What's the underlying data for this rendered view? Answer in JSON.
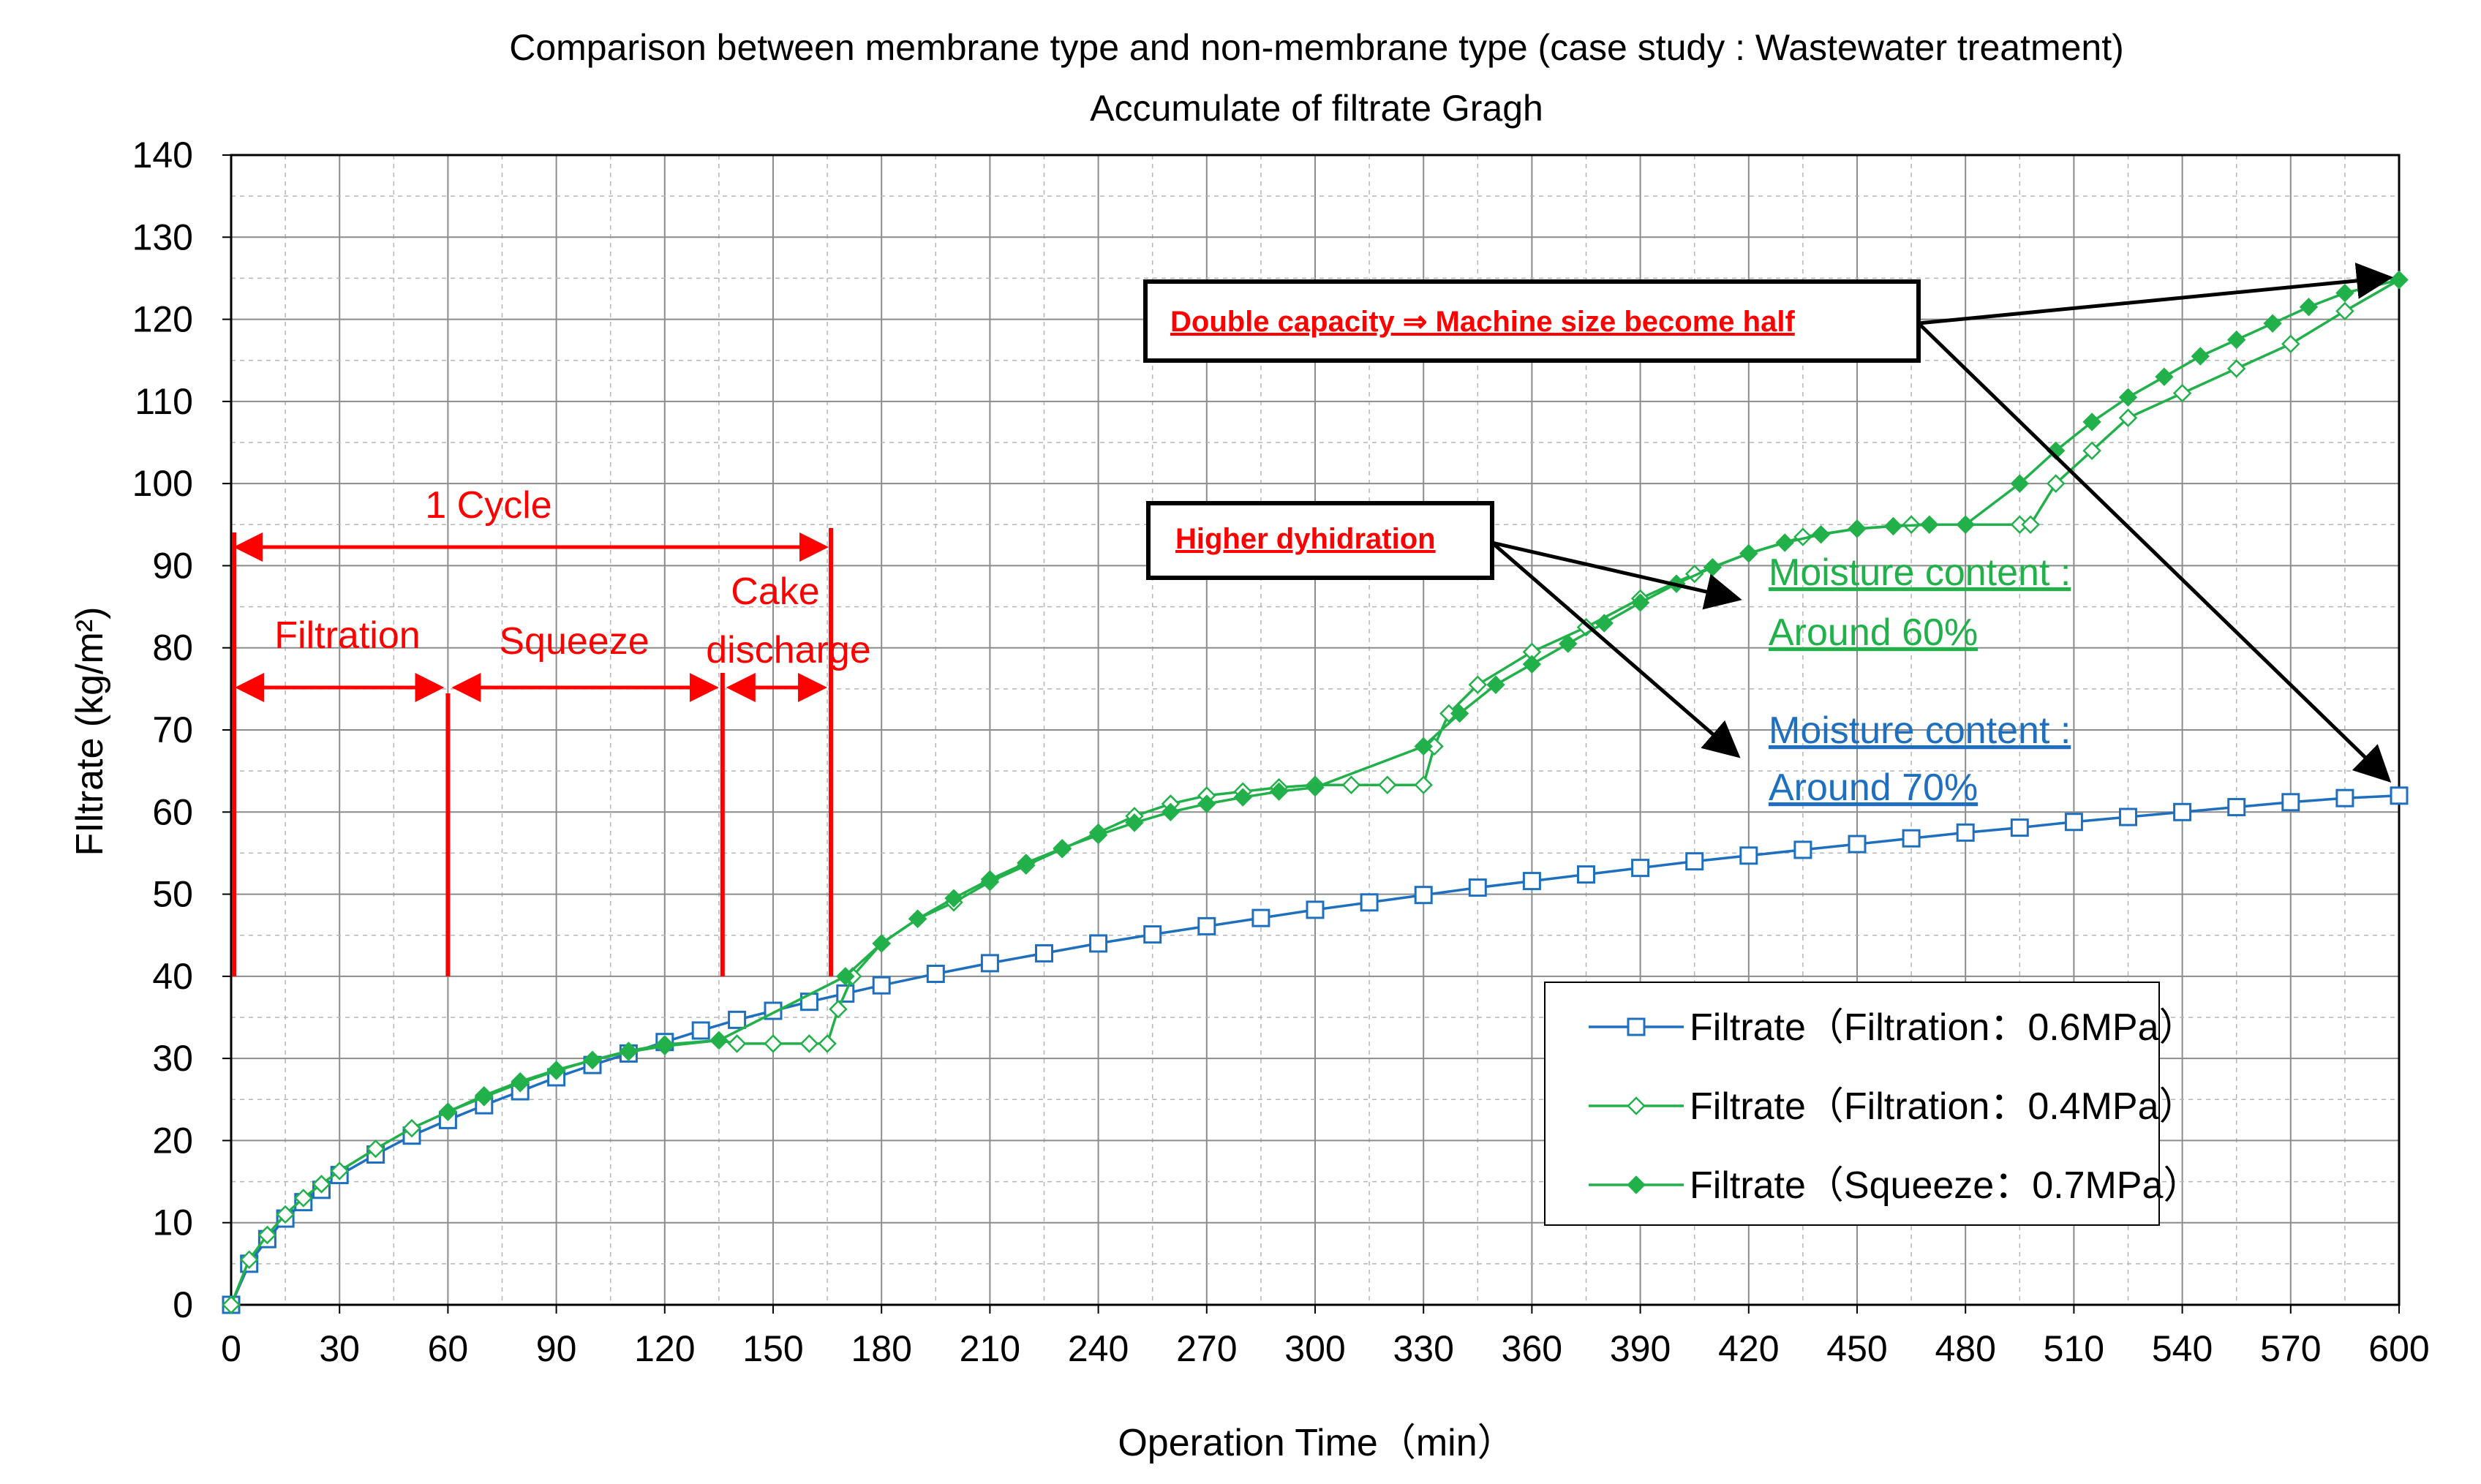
{
  "chart_data": {
    "type": "line",
    "title": "Comparison between membrane type and non-membrane type (case study : Wastewater treatment)",
    "subtitle": "Accumulate of filtrate Gragh",
    "xlabel": "Operation Time（min）",
    "ylabel": "FIltrate (kg/m²)",
    "xlim": [
      0,
      600
    ],
    "ylim": [
      0,
      140
    ],
    "x_ticks": [
      "0",
      "30",
      "60",
      "90",
      "120",
      "150",
      "180",
      "210",
      "240",
      "270",
      "300",
      "330",
      "360",
      "390",
      "420",
      "450",
      "480",
      "510",
      "540",
      "570",
      "600"
    ],
    "y_ticks": [
      "0",
      "10",
      "20",
      "30",
      "40",
      "50",
      "60",
      "70",
      "80",
      "90",
      "100",
      "110",
      "120",
      "130",
      "140"
    ],
    "grid": "on (major solid, minor dashed)",
    "legend_position": "bottom-right",
    "series": [
      {
        "name": "Filtrate（Filtration：0.6MPa）",
        "color": "#1f6fbf",
        "marker": "open-square",
        "x": [
          0,
          5,
          10,
          15,
          20,
          25,
          30,
          40,
          50,
          60,
          70,
          80,
          90,
          100,
          110,
          120,
          130,
          140,
          150,
          160,
          170,
          180,
          195,
          210,
          225,
          240,
          255,
          270,
          285,
          300,
          315,
          330,
          345,
          360,
          375,
          390,
          405,
          420,
          435,
          450,
          465,
          480,
          495,
          510,
          525,
          540,
          555,
          570,
          585,
          600
        ],
        "y": [
          0,
          5,
          8,
          10.5,
          12.5,
          14,
          15.8,
          18.3,
          20.6,
          22.5,
          24.3,
          26,
          27.7,
          29.2,
          30.6,
          32,
          33.4,
          34.7,
          35.8,
          36.9,
          37.9,
          38.9,
          40.3,
          41.6,
          42.8,
          44,
          45.1,
          46.1,
          47.1,
          48.1,
          49,
          49.9,
          50.8,
          51.6,
          52.4,
          53.2,
          54,
          54.7,
          55.4,
          56.1,
          56.8,
          57.5,
          58.1,
          58.8,
          59.4,
          60,
          60.6,
          61.2,
          61.7,
          62
        ]
      },
      {
        "name": "Filtrate（Filtration：0.4MPa）",
        "color": "#22b04b",
        "marker": "open-diamond",
        "x": [
          0,
          5,
          10,
          15,
          20,
          25,
          30,
          40,
          50,
          60,
          70,
          80,
          90,
          100,
          110,
          120,
          135,
          140,
          150,
          160,
          165,
          168,
          172,
          180,
          190,
          200,
          210,
          220,
          230,
          240,
          250,
          260,
          270,
          280,
          290,
          300,
          310,
          320,
          330,
          333,
          337,
          345,
          360,
          375,
          390,
          405,
          420,
          435,
          450,
          465,
          480,
          495,
          498,
          505,
          515,
          525,
          540,
          555,
          570,
          585,
          600
        ],
        "y": [
          0,
          5.5,
          8.5,
          11,
          13,
          14.7,
          16.3,
          19,
          21.5,
          23.5,
          25.3,
          27,
          28.5,
          29.8,
          30.9,
          31.7,
          32.2,
          31.8,
          31.8,
          31.8,
          31.8,
          36,
          40,
          44,
          47,
          49,
          51.5,
          53.5,
          55.5,
          57.5,
          59.5,
          61,
          62,
          62.5,
          63,
          63.3,
          63.3,
          63.3,
          63.3,
          68,
          72,
          75.5,
          79.5,
          82.5,
          86,
          89,
          91.5,
          93.5,
          94.5,
          95,
          95,
          95,
          95,
          100,
          104,
          108,
          111,
          114,
          117,
          121,
          124.8
        ]
      },
      {
        "name": "Filtrate（Squeeze：0.7MPa）",
        "color": "#22b04b",
        "marker": "filled-diamond",
        "x": [
          60,
          70,
          80,
          90,
          100,
          110,
          120,
          135,
          170,
          180,
          190,
          200,
          210,
          220,
          230,
          240,
          250,
          260,
          270,
          280,
          290,
          300,
          330,
          340,
          350,
          360,
          370,
          380,
          390,
          400,
          410,
          420,
          430,
          440,
          450,
          460,
          470,
          480,
          495,
          505,
          515,
          525,
          535,
          545,
          555,
          565,
          575,
          585,
          600
        ],
        "y": [
          23.5,
          25.5,
          27.2,
          28.6,
          29.8,
          30.8,
          31.5,
          32.2,
          40,
          44,
          47,
          49.5,
          51.8,
          53.8,
          55.6,
          57.2,
          58.7,
          60,
          61,
          61.8,
          62.5,
          63,
          68,
          72,
          75.5,
          78,
          80.5,
          83,
          85.5,
          87.8,
          89.8,
          91.5,
          92.8,
          93.8,
          94.5,
          94.8,
          95,
          95,
          100,
          104,
          107.5,
          110.5,
          113,
          115.5,
          117.5,
          119.5,
          121.5,
          123.2,
          124.8
        ]
      }
    ],
    "annotations": {
      "cycle_label": "1 Cycle",
      "filtration_label": "Filtration",
      "squeeze_label": "Squeeze",
      "cake_label_1": "Cake",
      "cake_label_2": "discharge",
      "callout_capacity": "Double capacity ⇒ Machine size become half",
      "callout_dehydration": "Higher dyhidration",
      "moisture_green_1": "Moisture content :",
      "moisture_green_2": "Around 60%",
      "moisture_blue_1": "Moisture content :",
      "moisture_blue_2": "Around 70%",
      "red_lines_x": [
        0,
        60,
        136,
        166
      ]
    }
  }
}
